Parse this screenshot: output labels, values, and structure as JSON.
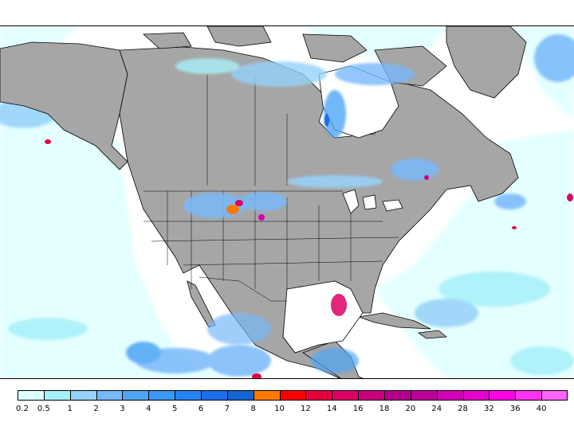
{
  "map": {
    "land_color": "#a6a6a6",
    "water_color": "#ffffff",
    "border_color": "#000000"
  },
  "legend": {
    "labels": [
      "0.2",
      "0.5",
      "1",
      "2",
      "3",
      "4",
      "5",
      "6",
      "7",
      "8",
      "10",
      "12",
      "14",
      "16",
      "18",
      "20",
      "24",
      "28",
      "32",
      "36",
      "40"
    ],
    "colors": [
      "#e0ffff",
      "#a8f0f8",
      "#96d2fa",
      "#78b9fa",
      "#50a5f5",
      "#3c97f5",
      "#2883f0",
      "#1e6eeb",
      "#1464d2",
      "#ff7800",
      "#ff0000",
      "#e6003c",
      "#dc0064",
      "#c8007e",
      "#b4008c",
      "#be009b",
      "#d200b4",
      "#e600cd",
      "#ff00e6",
      "#ff32f0",
      "#ff64fa"
    ]
  }
}
